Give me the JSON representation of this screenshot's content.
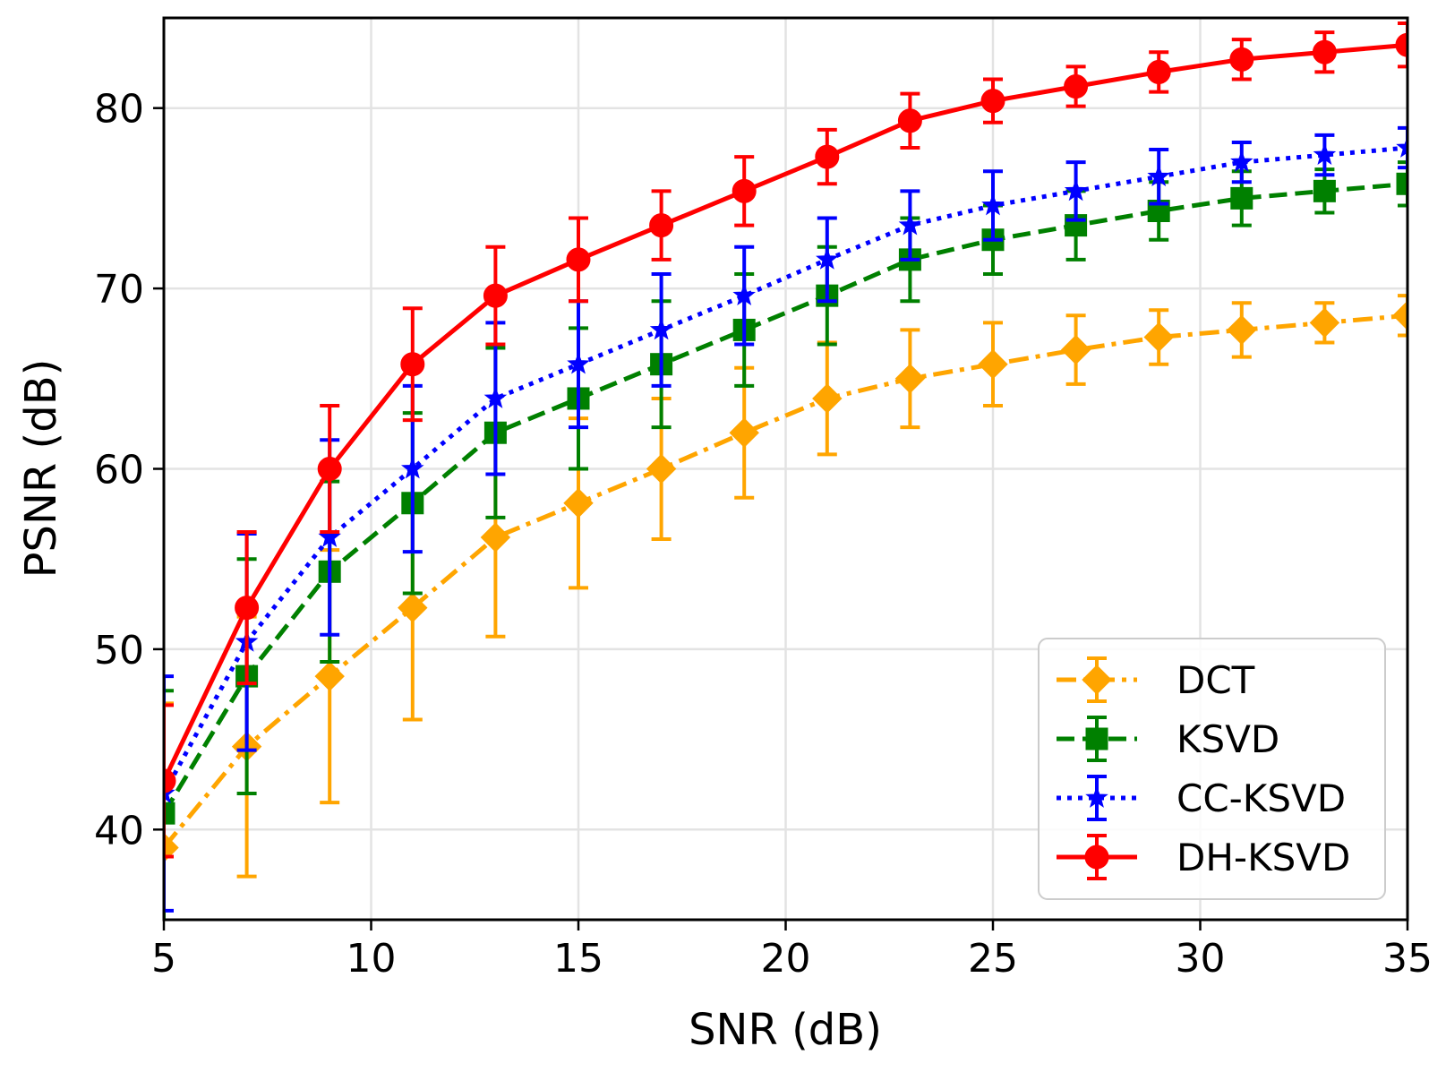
{
  "chart_data": {
    "type": "line",
    "title": "",
    "xlabel": "SNR (dB)",
    "ylabel": "PSNR (dB)",
    "xlim": [
      5,
      35
    ],
    "ylim": [
      35,
      85
    ],
    "xticks": [
      5,
      10,
      15,
      20,
      25,
      30,
      35
    ],
    "yticks": [
      40,
      50,
      60,
      70,
      80
    ],
    "xtick_labels": [
      "5",
      "10",
      "15",
      "20",
      "25",
      "30",
      "35"
    ],
    "ytick_labels": [
      "40",
      "50",
      "60",
      "70",
      "80"
    ],
    "grid": true,
    "legend_position": "bottom-right",
    "x": [
      5,
      7,
      9,
      11,
      13,
      15,
      17,
      19,
      21,
      23,
      25,
      27,
      29,
      31,
      33,
      35
    ],
    "series": [
      {
        "name": "DCT",
        "color": "#ffa500",
        "linestyle": "dashdot",
        "marker": "diamond",
        "values": [
          39.0,
          44.6,
          48.5,
          52.3,
          56.2,
          58.1,
          60.0,
          62.0,
          63.9,
          65.0,
          65.8,
          66.6,
          67.3,
          67.7,
          68.1,
          68.5
        ],
        "errors": [
          8.0,
          7.2,
          7.0,
          6.2,
          5.5,
          4.7,
          3.9,
          3.6,
          3.1,
          2.7,
          2.3,
          1.9,
          1.5,
          1.5,
          1.1,
          1.1
        ]
      },
      {
        "name": "KSVD",
        "color": "#008000",
        "linestyle": "dashed",
        "marker": "square",
        "values": [
          40.9,
          48.5,
          54.3,
          58.1,
          62.0,
          63.9,
          65.8,
          67.7,
          69.6,
          71.6,
          72.7,
          73.5,
          74.3,
          75.0,
          75.4,
          75.8
        ],
        "errors": [
          6.8,
          6.5,
          5.0,
          5.0,
          4.7,
          3.9,
          3.5,
          3.1,
          2.7,
          2.3,
          1.9,
          1.9,
          1.6,
          1.5,
          1.2,
          1.2
        ]
      },
      {
        "name": "CC-KSVD",
        "color": "#0000ff",
        "linestyle": "dotted",
        "marker": "star",
        "values": [
          42.0,
          50.4,
          56.2,
          60.0,
          63.9,
          65.8,
          67.7,
          69.6,
          71.6,
          73.5,
          74.6,
          75.4,
          76.2,
          77.0,
          77.4,
          77.8
        ],
        "errors": [
          6.5,
          6.0,
          5.4,
          4.6,
          4.2,
          3.5,
          3.1,
          2.7,
          2.3,
          1.9,
          1.9,
          1.6,
          1.5,
          1.1,
          1.1,
          1.1
        ]
      },
      {
        "name": "DH-KSVD",
        "color": "#ff0000",
        "linestyle": "solid",
        "marker": "circle",
        "values": [
          42.7,
          52.3,
          60.0,
          65.8,
          69.6,
          71.6,
          73.5,
          75.4,
          77.3,
          79.3,
          80.4,
          81.2,
          82.0,
          82.7,
          83.1,
          83.5
        ],
        "errors": [
          4.2,
          4.2,
          3.5,
          3.1,
          2.7,
          2.3,
          1.9,
          1.9,
          1.5,
          1.5,
          1.2,
          1.1,
          1.1,
          1.1,
          1.1,
          1.2
        ]
      }
    ]
  }
}
